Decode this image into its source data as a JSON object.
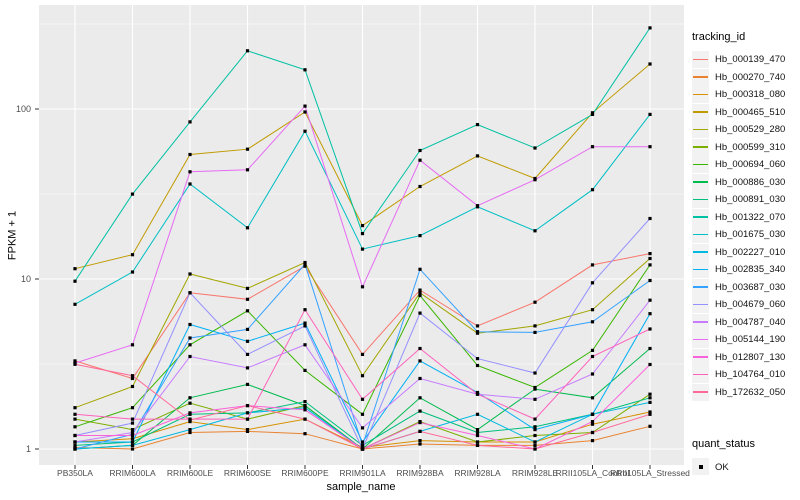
{
  "chart_data": {
    "type": "line",
    "title": "",
    "xlabel": "sample_name",
    "ylabel": "FPKM + 1",
    "y_scale": "log10",
    "y_ticks": [
      1,
      10,
      100
    ],
    "y_tick_labels": [
      "1",
      "10",
      "100"
    ],
    "y_minor": [
      3.162,
      31.62,
      316.2
    ],
    "ylim": [
      0.82,
      420
    ],
    "grid": "on",
    "legend_position": "right",
    "legend": {
      "tracking_title": "tracking_id",
      "quant_title": "quant_status",
      "quant_label": "OK"
    },
    "colors": {
      "panel": "#EBEBEB",
      "grid": "#FFFFFF",
      "tick": "#333333",
      "tick_text": "#4D4D4D",
      "point": "#000000",
      "legend_key_bg": "#F2F2F2"
    },
    "categories": [
      "PB350LA",
      "RRIM600LA",
      "RRIM600LE",
      "RRIM600SE",
      "RRIM600PE",
      "RRIM901LA",
      "RRIM928BA",
      "RRIM928LA",
      "RRIM928LE",
      "RRII105LA_Control",
      "RRII105LA_Stressed"
    ],
    "series": [
      {
        "name": "Hb_000139_470",
        "color": "#F8766D",
        "values": [
          3.3,
          2.6,
          8.3,
          7.6,
          11.9,
          3.6,
          8.6,
          5.3,
          7.3,
          12.1,
          14.1
        ]
      },
      {
        "name": "Hb_000270_740",
        "color": "#EA8331",
        "values": [
          1.02,
          1.0,
          1.25,
          1.27,
          1.23,
          1.0,
          1.07,
          1.05,
          1.05,
          1.12,
          1.36
        ]
      },
      {
        "name": "Hb_000318_080",
        "color": "#D89000",
        "values": [
          1.1,
          1.15,
          1.45,
          1.3,
          1.5,
          1.02,
          1.12,
          1.1,
          1.1,
          1.4,
          1.65
        ]
      },
      {
        "name": "Hb_000465_510",
        "color": "#C09B00",
        "values": [
          11.5,
          13.9,
          54,
          58,
          96,
          20.6,
          35,
          53,
          39,
          95,
          184
        ]
      },
      {
        "name": "Hb_000529_280",
        "color": "#A3A500",
        "values": [
          1.75,
          2.33,
          10.7,
          8.8,
          12.5,
          2.7,
          8.3,
          4.8,
          5.3,
          6.6,
          13.2
        ]
      },
      {
        "name": "Hb_000599_310",
        "color": "#7CAE00",
        "values": [
          1.5,
          1.3,
          1.86,
          1.5,
          1.8,
          1.0,
          1.45,
          1.1,
          1.2,
          1.25,
          2.1
        ]
      },
      {
        "name": "Hb_000694_060",
        "color": "#39B600",
        "values": [
          1.35,
          1.75,
          4.1,
          6.5,
          2.9,
          1.6,
          8.0,
          3.1,
          2.3,
          3.8,
          12.1
        ]
      },
      {
        "name": "Hb_000886_030",
        "color": "#00BB4E",
        "values": [
          1.0,
          1.05,
          2.0,
          2.4,
          1.8,
          1.0,
          2.0,
          1.3,
          2.25,
          2.0,
          3.9
        ]
      },
      {
        "name": "Hb_000891_030",
        "color": "#00BF7D",
        "values": [
          1.05,
          1.1,
          1.6,
          1.63,
          1.9,
          1.05,
          1.67,
          1.25,
          1.35,
          1.6,
          2.0
        ]
      },
      {
        "name": "Hb_001322_070",
        "color": "#00C1A3",
        "values": [
          9.7,
          31.6,
          84,
          220,
          170,
          18.5,
          57,
          81,
          59,
          93,
          300
        ]
      },
      {
        "name": "Hb_001675_030",
        "color": "#00BFC4",
        "values": [
          7.1,
          11.0,
          36.2,
          20,
          74,
          15,
          18,
          26.6,
          19.2,
          33.5,
          93
        ]
      },
      {
        "name": "Hb_002227_010",
        "color": "#00BAE0",
        "values": [
          1.0,
          1.05,
          1.3,
          1.63,
          1.75,
          1.0,
          1.27,
          1.6,
          1.1,
          1.6,
          1.88
        ]
      },
      {
        "name": "Hb_002835_340",
        "color": "#00B0F6",
        "values": [
          1.1,
          1.1,
          5.4,
          4.3,
          5.5,
          1.1,
          3.3,
          2.15,
          1.3,
          1.6,
          6.25
        ]
      },
      {
        "name": "Hb_003687_030",
        "color": "#35A2FF",
        "values": [
          1.0,
          1.22,
          4.5,
          5.05,
          12.2,
          1.05,
          11.4,
          4.9,
          4.85,
          5.6,
          9.8
        ]
      },
      {
        "name": "Hb_004679_060",
        "color": "#9590FF",
        "values": [
          1.2,
          1.42,
          8.3,
          3.6,
          5.3,
          1.0,
          6.3,
          3.4,
          2.8,
          9.5,
          22.7
        ]
      },
      {
        "name": "Hb_004787_040",
        "color": "#C77CFF",
        "values": [
          1.1,
          1.25,
          3.5,
          3.0,
          4.1,
          1.33,
          2.6,
          2.1,
          1.96,
          2.76,
          7.5
        ]
      },
      {
        "name": "Hb_005144_190",
        "color": "#E76BF3",
        "values": [
          3.2,
          4.1,
          42.7,
          43.9,
          104,
          9.0,
          50,
          27,
          38.4,
          60,
          60
        ]
      },
      {
        "name": "Hb_012807_130",
        "color": "#FA62DB",
        "values": [
          1.2,
          1.2,
          1.63,
          1.8,
          1.7,
          1.0,
          1.43,
          1.2,
          1.0,
          1.45,
          3.14
        ]
      },
      {
        "name": "Hb_104764_010",
        "color": "#FF62BC",
        "values": [
          1.6,
          1.5,
          1.5,
          1.5,
          6.6,
          1.96,
          3.9,
          2.1,
          1.5,
          3.5,
          5.08
        ]
      },
      {
        "name": "Hb_172632_050",
        "color": "#FF6A98",
        "values": [
          3.15,
          2.7,
          1.48,
          1.8,
          1.5,
          1.0,
          1.27,
          1.05,
          1.0,
          1.25,
          1.6
        ]
      }
    ]
  }
}
